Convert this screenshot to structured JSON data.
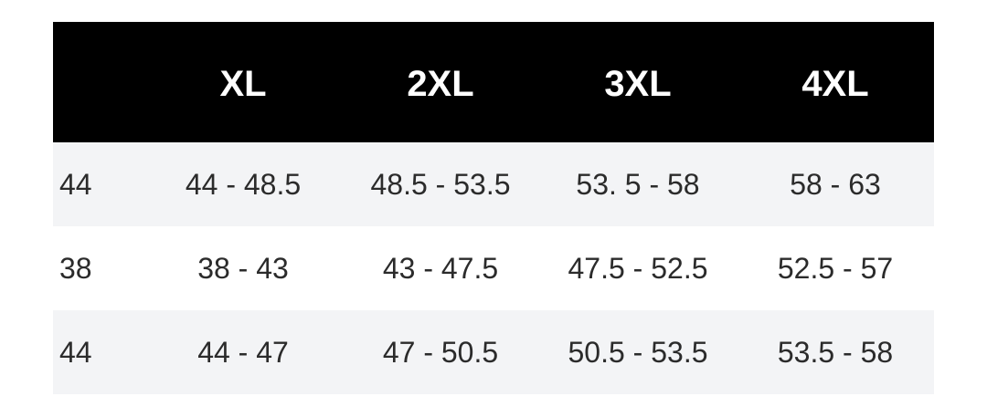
{
  "size_chart": {
    "headers": [
      "",
      "XL",
      "2XL",
      "3XL",
      "4XL"
    ],
    "rows": [
      [
        "44",
        "44 - 48.5",
        "48.5 - 53.5",
        "53. 5 - 58",
        "58 - 63"
      ],
      [
        "38",
        "38 - 43",
        "43 - 47.5",
        "47.5 - 52.5",
        "52.5 - 57"
      ],
      [
        "44",
        "44 - 47",
        "47 - 50.5",
        "50.5 - 53.5",
        "53.5 - 58"
      ]
    ]
  },
  "colors": {
    "header_bg": "#000000",
    "header_text": "#ffffff",
    "stripe_bg": "#f3f4f6",
    "body_text": "#2b2b2b"
  }
}
